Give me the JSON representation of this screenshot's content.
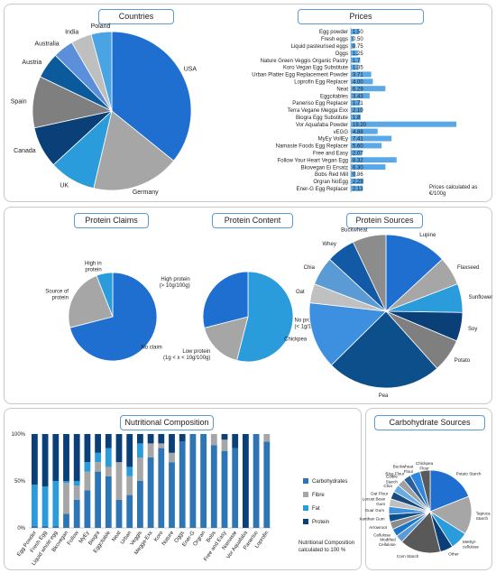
{
  "panels": {
    "countries_title": "Countries",
    "prices_title": "Prices",
    "protein_claims_title": "Protein Claims",
    "protein_content_title": "Protein Content",
    "protein_sources_title": "Protein Sources",
    "nutritional_title": "Nutritional Composition",
    "carb_sources_title": "Carbohydrate Sources"
  },
  "notes": {
    "prices_line1": "Prices calculated as",
    "prices_line2": "€/100g",
    "nutrition_line1": "Nutritional Composition",
    "nutrition_line2": "calculated to 100 %"
  },
  "colors": {
    "blue1": "#1f6fd1",
    "gray": "#a6a6a6",
    "blue2": "#2a9bdb",
    "navy": "#0b3f78",
    "navy2": "#07457e",
    "dgray": "#7f7f7f",
    "sky": "#5b9bd5",
    "dblue": "#114a88",
    "bar": "#5aa9e6",
    "panelBorder": "#c9c9c9"
  },
  "chart_data": [
    {
      "id": "countries",
      "type": "pie",
      "labels": [
        "USA",
        "Germany",
        "UK",
        "Canada",
        "Spain",
        "Austria",
        "Australia",
        "India",
        "Poland"
      ],
      "values": [
        34,
        17,
        9,
        8,
        10,
        5,
        4,
        4,
        4
      ],
      "colors": [
        "#1f6fd1",
        "#a6a6a6",
        "#2a9bdb",
        "#0b3f78",
        "#7f7f7f",
        "#0a5a9c",
        "#5b8fd9",
        "#bfbfbf",
        "#4aa3e3"
      ]
    },
    {
      "id": "prices",
      "type": "bar",
      "categories": [
        "Egg powder",
        "Fresh eggs",
        "Liquid pasteurised eggs",
        "Oggs",
        "Nature Green Veggis Organic Pastry",
        "Koro Vegan Egg Substitute",
        "Urban Platter Egg Replacement Powder",
        "Loprofin Egg Replacer",
        "Neat",
        "Eggcitables",
        "Paneriso Egg Replacer",
        "Terra Vegane Megga Exx",
        "Biogra Egg Substitute",
        "Vor Aquafaba Powder",
        "vEGG",
        "MyEy VollEy",
        "Namaste Foods Egg Replacer",
        "Free and Easy",
        "Follow Your Heart Vegan Egg",
        "Bkovegan Ei Ersatz",
        "Bobs Red Mill",
        "Orgran NoEgg",
        "Ener-G Egg Replacer"
      ],
      "values": [
        1.5,
        0.5,
        0.75,
        1.25,
        1.7,
        1.35,
        3.71,
        4.0,
        6.29,
        3.43,
        1.71,
        2.1,
        1.8,
        19.2,
        4.88,
        7.41,
        5.6,
        2.07,
        8.32,
        6.3,
        0.86,
        2.29,
        2.13
      ],
      "value_labels": [
        "1.50",
        "0.50",
        "0.75",
        "1.25",
        "1.7",
        "1.35",
        "3.71",
        "4.00",
        "6.29",
        "3.43",
        "1.71",
        "2.10",
        "1.8",
        "19.20",
        "4.88",
        "7.41",
        "5.60",
        "2.07",
        "8.32",
        "6.30",
        "0.86",
        "2.29",
        "2.13"
      ]
    },
    {
      "id": "protein_claims",
      "type": "pie",
      "labels": [
        "No claim",
        "Source of protein",
        "High in protein"
      ],
      "values": [
        71,
        23,
        6
      ],
      "colors": [
        "#1f6fd1",
        "#a6a6a6",
        "#2a9bdb"
      ]
    },
    {
      "id": "protein_content",
      "type": "pie",
      "labels": [
        "No protein (< 1g/100g)",
        "Low protein (1g < x < 10g/100g)",
        "High protein (> 10g/100g)"
      ],
      "values": [
        54,
        17,
        29
      ],
      "colors": [
        "#2a9bdb",
        "#a6a6a6",
        "#1f6fd1"
      ]
    },
    {
      "id": "protein_sources",
      "type": "pie",
      "labels": [
        "Lupine",
        "Flaxseed",
        "Sunflower",
        "Soy",
        "Potato",
        "Pea",
        "Chickpea",
        "Oat",
        "Chia",
        "Whey",
        "Buckwheat"
      ],
      "values": [
        13,
        6,
        6,
        6,
        7,
        24,
        14,
        4,
        6,
        6,
        7
      ],
      "colors": [
        "#1f6fd1",
        "#a6a6a6",
        "#2a9bdb",
        "#0b3f78",
        "#7f7f7f",
        "#0d4f8b",
        "#3d8fe0",
        "#c0c0c0",
        "#5b9bd5",
        "#1259a6",
        "#8c8c8c"
      ]
    },
    {
      "id": "nutritional_composition",
      "type": "bar",
      "categories": [
        "Egg Powder",
        "Fresh Egg",
        "Liquid whole egg",
        "Bkovegan",
        "Follow",
        "MyEy",
        "Biogra",
        "Eggcitable",
        "Neat",
        "Urban",
        "Veggis",
        "Megga-Exx",
        "Koro",
        "Nature",
        "Oggs",
        "Ener-G",
        "Orgran",
        "Bobs",
        "Free and Easy",
        "Namaste",
        "Vor Aquafaba",
        "Paneriso",
        "Loprofin"
      ],
      "series": [
        {
          "name": "Carbohydrates",
          "values": [
            2,
            2,
            2,
            15,
            30,
            40,
            60,
            55,
            30,
            35,
            50,
            75,
            85,
            70,
            92,
            100,
            100,
            88,
            82,
            85,
            0,
            100,
            92
          ]
        },
        {
          "name": "Fibre",
          "values": [
            0,
            0,
            0,
            33,
            15,
            20,
            10,
            10,
            40,
            20,
            25,
            15,
            5,
            10,
            0,
            0,
            0,
            12,
            12,
            0,
            0,
            0,
            8
          ]
        },
        {
          "name": "Fat",
          "values": [
            44,
            42,
            48,
            2,
            5,
            10,
            10,
            20,
            0,
            10,
            15,
            0,
            0,
            0,
            0,
            0,
            0,
            0,
            0,
            0,
            0,
            0,
            0
          ]
        },
        {
          "name": "Protein",
          "values": [
            54,
            56,
            50,
            50,
            50,
            30,
            20,
            15,
            30,
            35,
            10,
            10,
            10,
            20,
            8,
            0,
            0,
            0,
            6,
            15,
            100,
            0,
            0
          ]
        }
      ],
      "ytick_labels": [
        "0%",
        "50%",
        "100%"
      ],
      "colors": [
        "#2e75b6",
        "#a6a6a6",
        "#2a9bdb",
        "#0b3f78"
      ]
    },
    {
      "id": "carbohydrate_sources",
      "type": "pie",
      "labels": [
        "Potato Starch",
        "Tapioca Starch",
        "Methyl-cellulose",
        "Other",
        "Corn Starch",
        "Modified Cellulose",
        "Cellulose",
        "Arrowroot",
        "Xanthan Gum",
        "Guar Gum",
        "Locust Bean Gum",
        "Oat Flour",
        "Chia",
        "Edible Starch",
        "Rice Flour",
        "Buckwheat Flour",
        "Chickpea Flour"
      ],
      "values": [
        19,
        15,
        7,
        5,
        16,
        3,
        3,
        3,
        3,
        3,
        3,
        3,
        3,
        3,
        3,
        4,
        4
      ],
      "colors": [
        "#1f6fd1",
        "#a6a6a6",
        "#2a9bdb",
        "#0b3f78",
        "#595959",
        "#5b9bd5",
        "#1b75c9",
        "#8c8c8c",
        "#0d4f8b",
        "#3d8fe0",
        "#bfbfbf",
        "#174b80",
        "#6aaae3",
        "#a0a0a0",
        "#2a5f9e",
        "#2e86de",
        "#5a5a5a"
      ]
    }
  ]
}
